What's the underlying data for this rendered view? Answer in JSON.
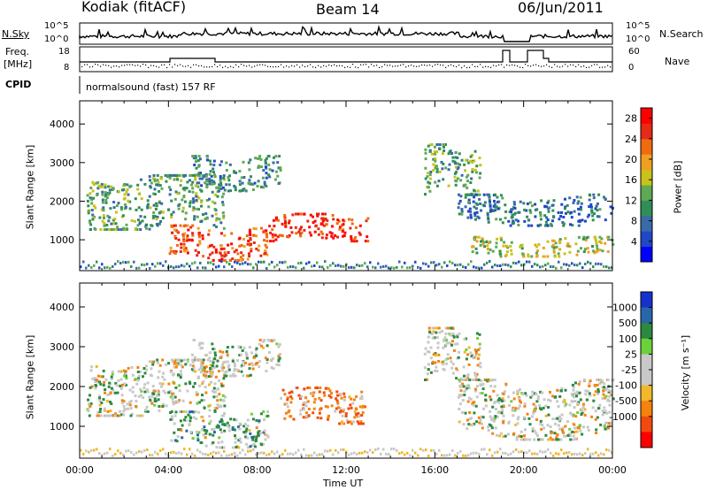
{
  "header": {
    "station": "Kodiak (fitACF)",
    "beam": "Beam 14",
    "date": "06/Jun/2011"
  },
  "strips": {
    "nsky_label": "N.Sky",
    "nsky_ticks": [
      "10^5",
      "10^0"
    ],
    "nsearch_label": "N.Search",
    "nsearch_ticks": [
      "10^5",
      "10^0"
    ],
    "freq_label": "Freq.",
    "freq_unit": "[MHz]",
    "freq_ticks": [
      "18",
      "8"
    ],
    "nave_label": "Nave",
    "nave_ticks": [
      "60",
      "0"
    ],
    "cpid_label": "CPID",
    "cpid_text": "normalsound (fast) 157 RF"
  },
  "colors": {
    "power_scale": [
      "#0000ff",
      "#1f47c8",
      "#3a6aa8",
      "#2f8f56",
      "#5fa955",
      "#c9c21b",
      "#f0a020",
      "#f06a10",
      "#e62a18",
      "#ff0000"
    ],
    "velocity_scale": [
      "#1533cc",
      "#2766aa",
      "#2b8a40",
      "#6bd13a",
      "#c8c8c8",
      "#c8c8c8",
      "#f0b82a",
      "#f7820e",
      "#f24a0e",
      "#ff0000"
    ]
  },
  "chart_data": [
    {
      "type": "heatmap",
      "panel": "power",
      "ylabel": "Slant Range [km]",
      "xlim": [
        "00:00",
        "24:00"
      ],
      "ylim": [
        200,
        4600
      ],
      "yticks": [
        1000,
        2000,
        3000,
        4000
      ],
      "xticks": [
        "00:00",
        "04:00",
        "08:00",
        "12:00",
        "16:00",
        "20:00",
        "00:00"
      ],
      "colorbar": {
        "label": "Power [dB]",
        "ticks": [
          4,
          8,
          12,
          16,
          20,
          24,
          28
        ],
        "range": [
          0,
          30
        ]
      },
      "echo_regions": [
        {
          "t0": 0.3,
          "t1": 6.5,
          "r0": 1300,
          "r1": 2700,
          "level": 12
        },
        {
          "t0": 4.0,
          "t1": 8.5,
          "r0": 500,
          "r1": 1400,
          "level": 24
        },
        {
          "t0": 8.5,
          "t1": 13.0,
          "r0": 1000,
          "r1": 1700,
          "level": 26
        },
        {
          "t0": 5.0,
          "t1": 9.0,
          "r0": 2300,
          "r1": 3200,
          "level": 10
        },
        {
          "t0": 15.5,
          "t1": 18.0,
          "r0": 2200,
          "r1": 3500,
          "level": 12
        },
        {
          "t0": 17.0,
          "t1": 24.0,
          "r0": 1400,
          "r1": 2200,
          "level": 8
        },
        {
          "t0": 17.5,
          "t1": 24.0,
          "r0": 600,
          "r1": 1100,
          "level": 16
        }
      ]
    },
    {
      "type": "heatmap",
      "panel": "velocity",
      "ylabel": "Slant Range [km]",
      "xlabel": "Time UT",
      "xlim": [
        "00:00",
        "24:00"
      ],
      "ylim": [
        200,
        4600
      ],
      "yticks": [
        1000,
        2000,
        3000,
        4000
      ],
      "xticks": [
        "00:00",
        "04:00",
        "08:00",
        "12:00",
        "16:00",
        "20:00",
        "00:00"
      ],
      "colorbar": {
        "label": "Velocity [m s⁻¹]",
        "ticks": [
          1000,
          500,
          100,
          25,
          -25,
          -100,
          -500,
          -1000
        ]
      },
      "echo_regions": [
        {
          "t0": 0.3,
          "t1": 6.5,
          "r0": 1300,
          "r1": 2700,
          "v": 10
        },
        {
          "t0": 4.0,
          "t1": 8.5,
          "r0": 500,
          "r1": 1400,
          "v": 150
        },
        {
          "t0": 9.0,
          "t1": 12.8,
          "r0": 1100,
          "r1": 2000,
          "v": -300
        },
        {
          "t0": 5.0,
          "t1": 9.0,
          "r0": 2300,
          "r1": 3200,
          "v": 10
        },
        {
          "t0": 15.5,
          "t1": 18.0,
          "r0": 2200,
          "r1": 3500,
          "v": 10
        },
        {
          "t0": 17.0,
          "t1": 24.0,
          "r0": 700,
          "r1": 2200,
          "v": 0
        }
      ]
    }
  ]
}
